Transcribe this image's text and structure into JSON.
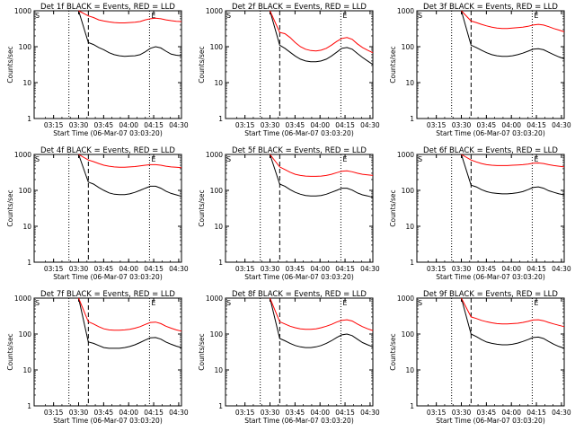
{
  "chart_data": [
    {
      "type": "line",
      "title": "Det 1f BLACK = Events, RED = LLD",
      "xlabel": "Start Time (06-Mar-07 03:03:20)",
      "ylabel": "Counts/sec",
      "y_scale": "log",
      "ylim": [
        1,
        1000
      ],
      "yticks": [
        "1",
        "10",
        "100",
        "1000"
      ],
      "xticks": [
        "03:15",
        "03:30",
        "03:45",
        "04:00",
        "04:15",
        "04:30"
      ],
      "markers": [
        "S",
        "E"
      ],
      "series": [
        {
          "name": "Events",
          "color": "#000000",
          "values": [
            1000,
            130,
            115,
            95,
            82,
            68,
            60,
            56,
            54,
            55,
            56,
            60,
            72,
            90,
            100,
            92,
            75,
            62,
            58,
            56
          ]
        },
        {
          "name": "LLD",
          "color": "#ff0000",
          "values": [
            1000,
            720,
            650,
            560,
            520,
            490,
            470,
            460,
            460,
            470,
            480,
            500,
            560,
            600,
            620,
            600,
            560,
            530,
            510,
            500
          ]
        }
      ]
    },
    {
      "type": "line",
      "title": "Det 2f BLACK = Events, RED = LLD",
      "xlabel": "Start Time (06-Mar-07 03:03:20)",
      "ylabel": "Counts/sec",
      "y_scale": "log",
      "ylim": [
        1,
        1000
      ],
      "yticks": [
        "1",
        "10",
        "100",
        "1000"
      ],
      "xticks": [
        "03:15",
        "03:30",
        "03:45",
        "04:00",
        "04:15",
        "04:30"
      ],
      "markers": [
        "S",
        "E"
      ],
      "series": [
        {
          "name": "Events",
          "color": "#000000",
          "values": [
            1000,
            110,
            90,
            70,
            55,
            45,
            40,
            38,
            38,
            40,
            45,
            55,
            70,
            90,
            95,
            85,
            65,
            50,
            40,
            32
          ]
        },
        {
          "name": "LLD",
          "color": "#ff0000",
          "values": [
            1000,
            250,
            230,
            180,
            130,
            100,
            85,
            78,
            76,
            80,
            90,
            110,
            140,
            170,
            180,
            160,
            120,
            95,
            80,
            68
          ]
        }
      ]
    },
    {
      "type": "line",
      "title": "Det 3f BLACK = Events, RED = LLD",
      "xlabel": "Start Time (06-Mar-07 03:03:20)",
      "ylabel": "Counts/sec",
      "y_scale": "log",
      "ylim": [
        1,
        1000
      ],
      "yticks": [
        "1",
        "10",
        "100",
        "1000"
      ],
      "xticks": [
        "03:15",
        "03:30",
        "03:45",
        "04:00",
        "04:15",
        "04:30"
      ],
      "markers": [
        "S",
        "E"
      ],
      "series": [
        {
          "name": "Events",
          "color": "#000000",
          "values": [
            1000,
            110,
            95,
            80,
            68,
            60,
            56,
            54,
            54,
            56,
            60,
            66,
            75,
            85,
            88,
            82,
            70,
            60,
            52,
            46
          ]
        },
        {
          "name": "LLD",
          "color": "#ff0000",
          "values": [
            1000,
            520,
            470,
            420,
            380,
            350,
            330,
            320,
            320,
            330,
            340,
            350,
            370,
            400,
            420,
            400,
            360,
            320,
            290,
            260
          ]
        }
      ]
    },
    {
      "type": "line",
      "title": "Det 4f BLACK = Events, RED = LLD",
      "xlabel": "Start Time (06-Mar-07 03:03:20)",
      "ylabel": "Counts/sec",
      "y_scale": "log",
      "ylim": [
        1,
        1000
      ],
      "yticks": [
        "1",
        "10",
        "100",
        "1000"
      ],
      "xticks": [
        "03:15",
        "03:30",
        "03:45",
        "04:00",
        "04:15",
        "04:30"
      ],
      "markers": [
        "S",
        "E"
      ],
      "series": [
        {
          "name": "Events",
          "color": "#000000",
          "values": [
            1000,
            170,
            150,
            120,
            100,
            85,
            78,
            76,
            76,
            80,
            88,
            100,
            115,
            130,
            130,
            115,
            95,
            82,
            75,
            68
          ]
        },
        {
          "name": "LLD",
          "color": "#ff0000",
          "values": [
            1000,
            700,
            630,
            560,
            500,
            470,
            450,
            440,
            440,
            450,
            460,
            480,
            500,
            520,
            520,
            500,
            470,
            450,
            440,
            430
          ]
        }
      ]
    },
    {
      "type": "line",
      "title": "Det 5f BLACK = Events, RED = LLD",
      "xlabel": "Start Time (06-Mar-07 03:03:20)",
      "ylabel": "Counts/sec",
      "y_scale": "log",
      "ylim": [
        1,
        1000
      ],
      "yticks": [
        "1",
        "10",
        "100",
        "1000"
      ],
      "xticks": [
        "03:15",
        "03:30",
        "03:45",
        "04:00",
        "04:15",
        "04:30"
      ],
      "markers": [
        "S",
        "E"
      ],
      "series": [
        {
          "name": "Events",
          "color": "#000000",
          "values": [
            1000,
            150,
            130,
            105,
            88,
            78,
            72,
            70,
            70,
            72,
            78,
            88,
            100,
            115,
            115,
            102,
            85,
            75,
            70,
            64
          ]
        },
        {
          "name": "LLD",
          "color": "#ff0000",
          "values": [
            1000,
            450,
            380,
            320,
            280,
            260,
            250,
            245,
            245,
            250,
            260,
            280,
            310,
            340,
            350,
            330,
            300,
            280,
            270,
            260
          ]
        }
      ]
    },
    {
      "type": "line",
      "title": "Det 6f BLACK = Events, RED = LLD",
      "xlabel": "Start Time (06-Mar-07 03:03:20)",
      "ylabel": "Counts/sec",
      "y_scale": "log",
      "ylim": [
        1,
        1000
      ],
      "yticks": [
        "1",
        "10",
        "100",
        "1000"
      ],
      "xticks": [
        "03:15",
        "03:30",
        "03:45",
        "04:00",
        "04:15",
        "04:30"
      ],
      "markers": [
        "S",
        "E"
      ],
      "series": [
        {
          "name": "Events",
          "color": "#000000",
          "values": [
            1000,
            140,
            125,
            105,
            92,
            85,
            82,
            80,
            80,
            82,
            86,
            92,
            105,
            120,
            125,
            115,
            98,
            88,
            80,
            75
          ]
        },
        {
          "name": "LLD",
          "color": "#ff0000",
          "values": [
            1000,
            700,
            620,
            560,
            520,
            500,
            490,
            490,
            490,
            500,
            510,
            520,
            540,
            570,
            580,
            560,
            520,
            490,
            470,
            450
          ]
        }
      ]
    },
    {
      "type": "line",
      "title": "Det 7f BLACK = Events, RED = LLD",
      "xlabel": "Start Time (06-Mar-07 03:03:20)",
      "ylabel": "Counts/sec",
      "y_scale": "log",
      "ylim": [
        1,
        1000
      ],
      "yticks": [
        "1",
        "10",
        "100",
        "1000"
      ],
      "xticks": [
        "03:15",
        "03:30",
        "03:45",
        "04:00",
        "04:15",
        "04:30"
      ],
      "markers": [
        "S",
        "E"
      ],
      "series": [
        {
          "name": "Events",
          "color": "#000000",
          "values": [
            1000,
            60,
            55,
            48,
            42,
            40,
            40,
            40,
            42,
            45,
            50,
            58,
            68,
            78,
            80,
            72,
            60,
            52,
            46,
            42
          ]
        },
        {
          "name": "LLD",
          "color": "#ff0000",
          "values": [
            1000,
            220,
            190,
            160,
            140,
            130,
            128,
            128,
            130,
            135,
            145,
            160,
            185,
            210,
            215,
            195,
            165,
            145,
            130,
            120
          ]
        }
      ]
    },
    {
      "type": "line",
      "title": "Det 8f BLACK = Events, RED = LLD",
      "xlabel": "Start Time (06-Mar-07 03:03:20)",
      "ylabel": "Counts/sec",
      "y_scale": "log",
      "ylim": [
        1,
        1000
      ],
      "yticks": [
        "1",
        "10",
        "100",
        "1000"
      ],
      "xticks": [
        "03:15",
        "03:30",
        "03:45",
        "04:00",
        "04:15",
        "04:30"
      ],
      "markers": [
        "S",
        "E"
      ],
      "series": [
        {
          "name": "Events",
          "color": "#000000",
          "values": [
            1000,
            75,
            65,
            55,
            48,
            44,
            42,
            42,
            44,
            48,
            55,
            65,
            80,
            95,
            100,
            90,
            72,
            58,
            50,
            44
          ]
        },
        {
          "name": "LLD",
          "color": "#ff0000",
          "values": [
            1000,
            220,
            190,
            165,
            150,
            140,
            135,
            135,
            140,
            150,
            165,
            185,
            215,
            240,
            250,
            230,
            190,
            160,
            140,
            125
          ]
        }
      ]
    },
    {
      "type": "line",
      "title": "Det 9f BLACK = Events, RED = LLD",
      "xlabel": "Start Time (06-Mar-07 03:03:20)",
      "ylabel": "Counts/sec",
      "y_scale": "log",
      "ylim": [
        1,
        1000
      ],
      "yticks": [
        "1",
        "10",
        "100",
        "1000"
      ],
      "xticks": [
        "03:15",
        "03:30",
        "03:45",
        "04:00",
        "04:15",
        "04:30"
      ],
      "markers": [
        "S",
        "E"
      ],
      "series": [
        {
          "name": "Events",
          "color": "#000000",
          "values": [
            1000,
            100,
            85,
            70,
            60,
            55,
            52,
            50,
            50,
            52,
            56,
            62,
            70,
            80,
            82,
            75,
            62,
            52,
            45,
            40
          ]
        },
        {
          "name": "LLD",
          "color": "#ff0000",
          "values": [
            1000,
            300,
            270,
            240,
            220,
            205,
            195,
            190,
            190,
            195,
            200,
            210,
            225,
            245,
            250,
            235,
            210,
            190,
            175,
            160
          ]
        }
      ]
    }
  ]
}
